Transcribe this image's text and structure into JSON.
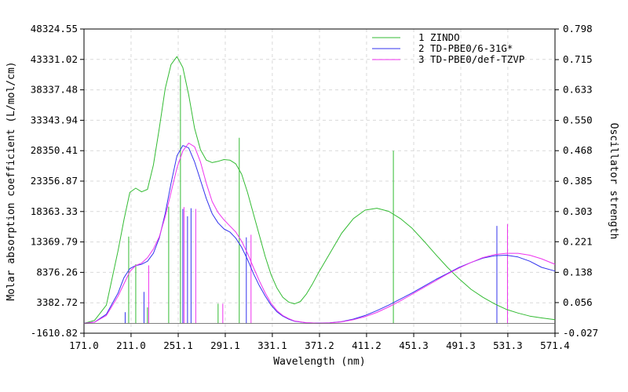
{
  "chart_data": {
    "type": "line",
    "xlabel": "Wavelength (nm)",
    "ylabel": "Molar absorption coefficient (L/mol/cm)",
    "y2label": "Oscillator strength",
    "xlim": [
      171.0,
      571.4
    ],
    "ylim": [
      -1610.82,
      48324.55
    ],
    "y2lim": [
      -0.027,
      0.798
    ],
    "x_ticks": [
      "171.0",
      "211.0",
      "251.1",
      "291.1",
      "331.1",
      "371.2",
      "411.2",
      "451.3",
      "491.3",
      "531.3",
      "571.4"
    ],
    "y_ticks": [
      "48324.55",
      "43331.02",
      "38337.48",
      "33343.94",
      "28350.41",
      "23356.87",
      "18363.33",
      "13369.79",
      "8376.26",
      "3382.72",
      "-1610.82"
    ],
    "y2_ticks": [
      "0.798",
      "0.715",
      "0.633",
      "0.550",
      "0.468",
      "0.385",
      "0.303",
      "0.221",
      "0.138",
      "0.056",
      "-0.027"
    ],
    "grid": true,
    "legend_position": "top-right",
    "series": [
      {
        "name": "1 ZINDO",
        "color": "#33bb33",
        "x": [
          171,
          180,
          190,
          200,
          205,
          210,
          215,
          220,
          225,
          230,
          235,
          240,
          245,
          250,
          255,
          260,
          265,
          270,
          275,
          280,
          285,
          290,
          295,
          300,
          305,
          310,
          315,
          320,
          325,
          330,
          335,
          340,
          345,
          350,
          355,
          360,
          365,
          370,
          380,
          390,
          400,
          410,
          420,
          430,
          440,
          450,
          460,
          470,
          480,
          490,
          500,
          510,
          520,
          530,
          540,
          550,
          560,
          571.4
        ],
        "values": [
          0,
          500,
          3000,
          12000,
          17000,
          21500,
          22200,
          21600,
          22000,
          26000,
          32000,
          38500,
          42500,
          43800,
          42000,
          37500,
          32000,
          28500,
          26800,
          26400,
          26600,
          26900,
          26800,
          26200,
          24500,
          21500,
          18000,
          14500,
          11000,
          8000,
          5800,
          4300,
          3500,
          3200,
          3600,
          4800,
          6400,
          8200,
          11500,
          14800,
          17200,
          18600,
          18900,
          18400,
          17200,
          15600,
          13500,
          11300,
          9200,
          7300,
          5600,
          4300,
          3200,
          2300,
          1700,
          1200,
          900,
          600
        ]
      },
      {
        "name": "2 TD-PBE0/6-31G*",
        "color": "#3333ee",
        "x": [
          171,
          180,
          190,
          200,
          205,
          210,
          215,
          220,
          225,
          230,
          235,
          240,
          245,
          250,
          255,
          260,
          265,
          270,
          275,
          280,
          285,
          290,
          295,
          300,
          305,
          310,
          315,
          320,
          325,
          330,
          335,
          340,
          345,
          350,
          360,
          370,
          380,
          390,
          400,
          410,
          420,
          430,
          440,
          450,
          460,
          470,
          480,
          490,
          500,
          510,
          520,
          530,
          540,
          550,
          560,
          571.4
        ],
        "values": [
          0,
          200,
          1500,
          5000,
          7500,
          9000,
          9500,
          9700,
          10200,
          11500,
          14000,
          18000,
          23000,
          27500,
          29200,
          28800,
          26500,
          23500,
          20500,
          18000,
          16500,
          15500,
          15000,
          14000,
          12500,
          10500,
          8200,
          6200,
          4500,
          3000,
          1900,
          1200,
          700,
          350,
          100,
          50,
          100,
          300,
          700,
          1300,
          2100,
          3000,
          4000,
          5000,
          6100,
          7200,
          8200,
          9200,
          10000,
          10700,
          11100,
          11200,
          10900,
          10200,
          9200,
          8600
        ]
      },
      {
        "name": "3 TD-PBE0/def-TZVP",
        "color": "#ee33ee",
        "x": [
          171,
          180,
          190,
          200,
          205,
          210,
          215,
          220,
          225,
          230,
          235,
          240,
          245,
          250,
          255,
          260,
          265,
          270,
          275,
          280,
          285,
          290,
          295,
          300,
          305,
          310,
          315,
          320,
          325,
          330,
          335,
          340,
          345,
          350,
          360,
          370,
          380,
          390,
          400,
          410,
          420,
          430,
          440,
          450,
          460,
          470,
          480,
          490,
          500,
          510,
          520,
          530,
          540,
          550,
          560,
          571.4
        ],
        "values": [
          0,
          200,
          1300,
          4500,
          6500,
          8500,
          9500,
          9900,
          10800,
          12200,
          14200,
          17500,
          21500,
          25500,
          28300,
          29600,
          29000,
          26500,
          23000,
          20000,
          18200,
          17000,
          16000,
          15000,
          13500,
          11500,
          9200,
          7000,
          5000,
          3300,
          2100,
          1300,
          800,
          400,
          120,
          40,
          80,
          250,
          600,
          1100,
          1800,
          2700,
          3700,
          4800,
          5900,
          7000,
          8100,
          9100,
          10000,
          10800,
          11300,
          11500,
          11500,
          11200,
          10600,
          9700
        ]
      }
    ],
    "sticks": [
      {
        "series": "1 ZINDO",
        "color": "#33bb33",
        "x": [
          209,
          215,
          225,
          243,
          253,
          285,
          303,
          434
        ],
        "values": [
          0.235,
          0.16,
          0.043,
          0.316,
          0.673,
          0.053,
          0.503,
          0.468
        ]
      },
      {
        "series": "2 TD-PBE0/6-31G*",
        "color": "#3333ee",
        "x": [
          206,
          222,
          255,
          259,
          262,
          309,
          522
        ],
        "values": [
          0.03,
          0.085,
          0.31,
          0.29,
          0.312,
          0.233,
          0.264
        ]
      },
      {
        "series": "3 TD-PBE0/def-TZVP",
        "color": "#ee33ee",
        "x": [
          226,
          256,
          266,
          289,
          313,
          531
        ],
        "values": [
          0.157,
          0.315,
          0.31,
          0.053,
          0.24,
          0.269
        ]
      }
    ]
  }
}
